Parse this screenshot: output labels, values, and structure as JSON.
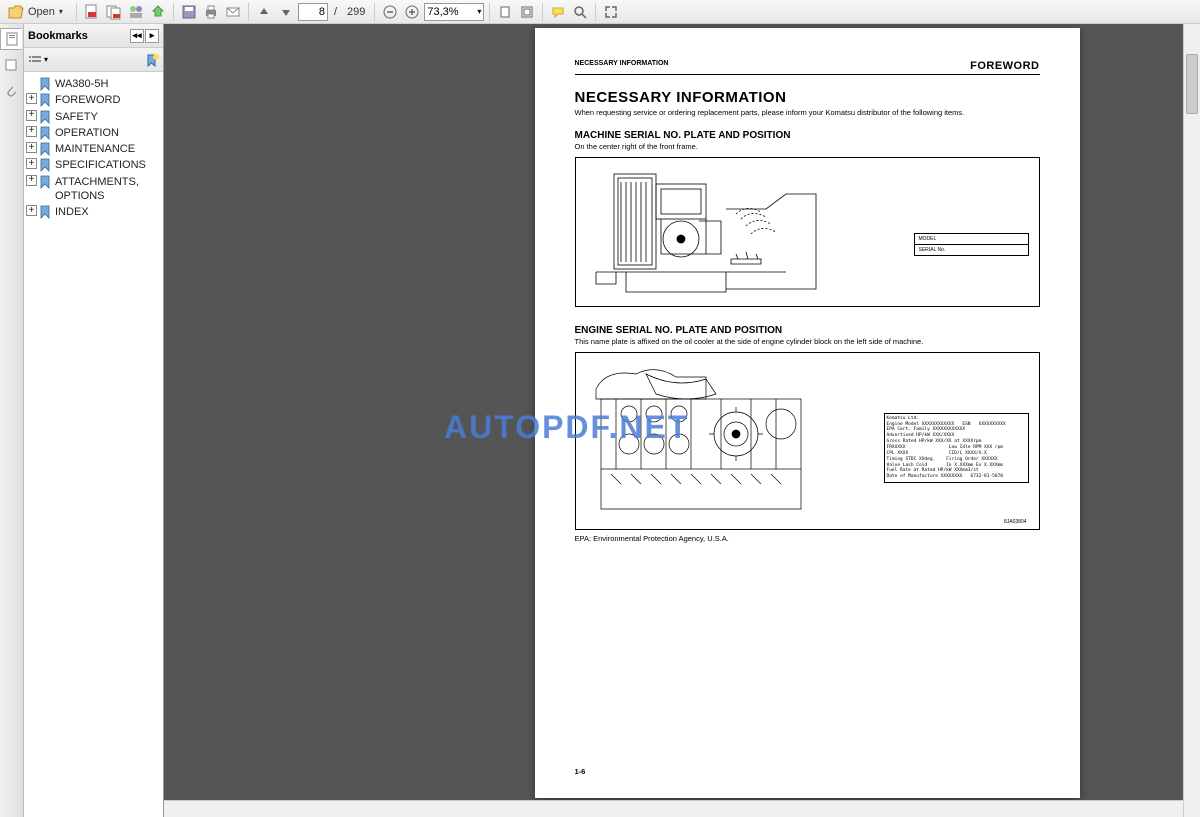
{
  "toolbar": {
    "open_label": "Open",
    "current_page": "8",
    "total_pages": "299",
    "page_sep": "/",
    "zoom_level": "73,3%"
  },
  "sidebar": {
    "title": "Bookmarks",
    "items": [
      {
        "label": "WA380-5H",
        "expandable": false
      },
      {
        "label": "FOREWORD",
        "expandable": true
      },
      {
        "label": "SAFETY",
        "expandable": true
      },
      {
        "label": "OPERATION",
        "expandable": true
      },
      {
        "label": "MAINTENANCE",
        "expandable": true
      },
      {
        "label": "SPECIFICATIONS",
        "expandable": true
      },
      {
        "label": "ATTACHMENTS, OPTIONS",
        "expandable": true
      },
      {
        "label": "INDEX",
        "expandable": true
      }
    ]
  },
  "page": {
    "header_left": "NECESSARY INFORMATION",
    "header_right": "FOREWORD",
    "title": "NECESSARY INFORMATION",
    "desc": "When requesting service or ordering replacement parts, please inform your Komatsu distributor of the following items.",
    "section1_title": "MACHINE SERIAL NO. PLATE AND POSITION",
    "section1_sub": "On the center right of the front frame.",
    "fig1_model": "MODEL",
    "fig1_serial": "SERIAL No.",
    "section2_title": "ENGINE SERIAL NO. PLATE AND POSITION",
    "section2_sub": "This name plate is affixed on the oil cooler at the side of engine cylinder block on the left side of machine.",
    "fig2_lines": "Komatsu Ltd.\nEngine Model XXXXXXXXXXXX   ESN   XXXXXXXXXX\nEPA Cert. Family XXXXXXXXXXXX\nAdvertised HP/kW XXX/XXXX\nGross Rated HP/kW XXX/XX at XXXXrpm\nFRXXXXX                Low Idle RPM XXX rpm\nCPL XXXX               CID/L XXXX/X.X\nTiming STDC XXdeg.    Firing Order XXXXXX\nValve Lash Cold       In X.XXXmm Ex X.XXXmm\nFuel Rate at Rated HP/kW XXXmm3/st\nDate of Manufacture XXXXXXXX   6732-81-5870",
    "fig2_ref": "8JA03804",
    "footnote": "EPA: Environmental Protection Agency, U.S.A.",
    "page_num": "1-6"
  },
  "watermark": "AUTOPDF.NET",
  "colors": {
    "toolbar_bg1": "#f8f8f8",
    "toolbar_bg2": "#e8e8e8",
    "content_bg": "#555555",
    "watermark": "#4a7dd6",
    "page_bg": "#ffffff"
  }
}
